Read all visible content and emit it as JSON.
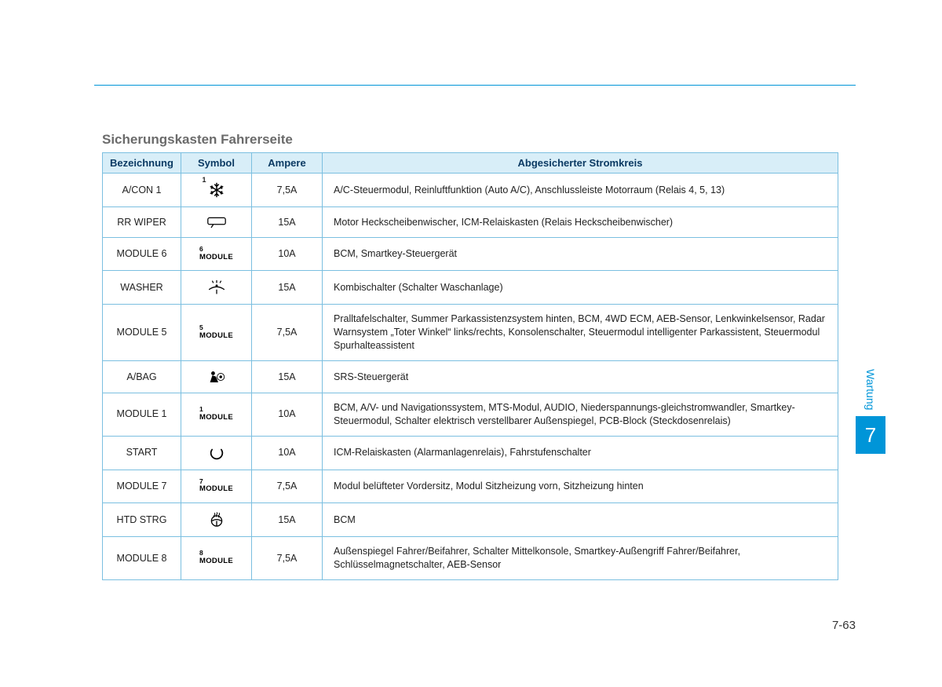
{
  "colors": {
    "accent": "#0095d8",
    "header_bg": "#d8eef8",
    "header_text": "#0b3a63",
    "border": "#7bbfe0",
    "title_gray": "#6b6b6b"
  },
  "side": {
    "label": "Wartung",
    "chapter": "7"
  },
  "page_number": "7-63",
  "section_title": "Sicherungskasten Fahrerseite",
  "table": {
    "headers": {
      "name": "Bezeichnung",
      "symbol": "Symbol",
      "ampere": "Ampere",
      "circuit": "Abgesicherter Stromkreis"
    },
    "rows": [
      {
        "name": "A/CON 1",
        "symbol": {
          "kind": "snowflake",
          "sup": "1"
        },
        "ampere": "7,5A",
        "circuit": "A/C-Steuermodul, Reinluftfunktion (Auto A/C), Anschlussleiste Motorraum (Relais 4, 5, 13)"
      },
      {
        "name": "RR WIPER",
        "symbol": {
          "kind": "wiper"
        },
        "ampere": "15A",
        "circuit": "Motor Heckscheibenwischer, ICM-Relaiskasten (Relais Heckscheibenwischer)"
      },
      {
        "name": "MODULE 6",
        "symbol": {
          "kind": "module",
          "sup": "6"
        },
        "ampere": "10A",
        "circuit": "BCM, Smartkey-Steuergerät"
      },
      {
        "name": "WASHER",
        "symbol": {
          "kind": "washer"
        },
        "ampere": "15A",
        "circuit": "Kombischalter (Schalter Waschanlage)"
      },
      {
        "name": "MODULE 5",
        "symbol": {
          "kind": "module",
          "sup": "5"
        },
        "ampere": "7,5A",
        "circuit": "Pralltafelschalter, Summer Parkassistenzsystem hinten, BCM, 4WD ECM, AEB-Sensor, Lenkwinkelsensor, Radar Warnsystem „Toter Winkel“ links/rechts, Konsolenschalter, Steuermodul intelligenter Parkassistent, Steuermodul Spurhalteassistent"
      },
      {
        "name": "A/BAG",
        "symbol": {
          "kind": "airbag"
        },
        "ampere": "15A",
        "circuit": "SRS-Steuergerät"
      },
      {
        "name": "MODULE 1",
        "symbol": {
          "kind": "module",
          "sup": "1"
        },
        "ampere": "10A",
        "circuit": "BCM, A/V- und Navigationssystem, MTS-Modul, AUDIO, Niederspannungs-gleichstromwandler, Smartkey-Steuermodul, Schalter elektrisch verstellbarer Außenspiegel, PCB-Block (Steckdosenrelais)"
      },
      {
        "name": "START",
        "symbol": {
          "kind": "start"
        },
        "ampere": "10A",
        "circuit": "ICM-Relaiskasten (Alarmanlagenrelais), Fahrstufenschalter"
      },
      {
        "name": "MODULE 7",
        "symbol": {
          "kind": "module",
          "sup": "7"
        },
        "ampere": "7,5A",
        "circuit": "Modul belüfteter Vordersitz, Modul Sitzheizung vorn, Sitzheizung hinten"
      },
      {
        "name": "HTD STRG",
        "symbol": {
          "kind": "htdstrg"
        },
        "ampere": "15A",
        "circuit": "BCM"
      },
      {
        "name": "MODULE 8",
        "symbol": {
          "kind": "module",
          "sup": "8"
        },
        "ampere": "7,5A",
        "circuit": "Außenspiegel Fahrer/Beifahrer, Schalter Mittelkonsole, Smartkey-Außengriff Fahrer/Beifahrer, Schlüsselmagnetschalter, AEB-Sensor"
      }
    ]
  },
  "module_word": "MODULE"
}
